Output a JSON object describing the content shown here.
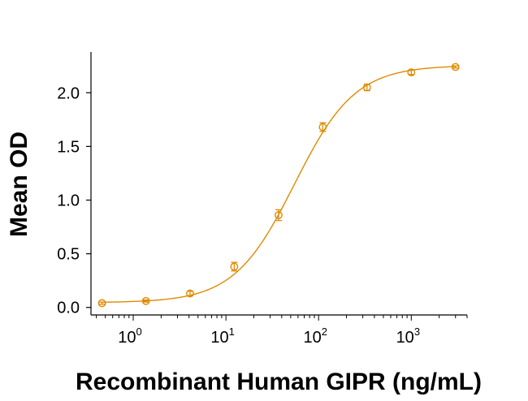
{
  "colors": {
    "series": "#E08A00",
    "axis": "#000000"
  },
  "chart_data": {
    "type": "scatter",
    "title": "",
    "xlabel": "Recombinant Human GIPR (ng/mL)",
    "ylabel": "Mean OD",
    "x_scale": "log",
    "xlim": [
      0.35,
      4000
    ],
    "ylim": [
      -0.07,
      2.38
    ],
    "x_ticks": [
      {
        "value": 1,
        "base": "10",
        "exp": "0"
      },
      {
        "value": 10,
        "base": "10",
        "exp": "1"
      },
      {
        "value": 100,
        "base": "10",
        "exp": "2"
      },
      {
        "value": 1000,
        "base": "10",
        "exp": "3"
      }
    ],
    "y_ticks": [
      {
        "value": 0.0,
        "label": "0.0"
      },
      {
        "value": 0.5,
        "label": "0.5"
      },
      {
        "value": 1.0,
        "label": "1.0"
      },
      {
        "value": 1.5,
        "label": "1.5"
      },
      {
        "value": 2.0,
        "label": "2.0"
      }
    ],
    "grid": false,
    "legend": "none",
    "series": [
      {
        "marker": "open-circle",
        "fit": "4PL",
        "points": [
          {
            "x": 0.46,
            "y": 0.04,
            "err": 0.01
          },
          {
            "x": 1.37,
            "y": 0.06,
            "err": 0.01
          },
          {
            "x": 4.1,
            "y": 0.13,
            "err": 0.02
          },
          {
            "x": 12.3,
            "y": 0.38,
            "err": 0.04
          },
          {
            "x": 37,
            "y": 0.86,
            "err": 0.05
          },
          {
            "x": 111,
            "y": 1.68,
            "err": 0.04
          },
          {
            "x": 333,
            "y": 2.05,
            "err": 0.03
          },
          {
            "x": 1000,
            "y": 2.19,
            "err": 0.02
          },
          {
            "x": 3000,
            "y": 2.24,
            "err": 0.01
          }
        ],
        "fit_params": {
          "bottom": 0.045,
          "top": 2.255,
          "ec50": 55,
          "hill": 1.33
        }
      }
    ]
  }
}
